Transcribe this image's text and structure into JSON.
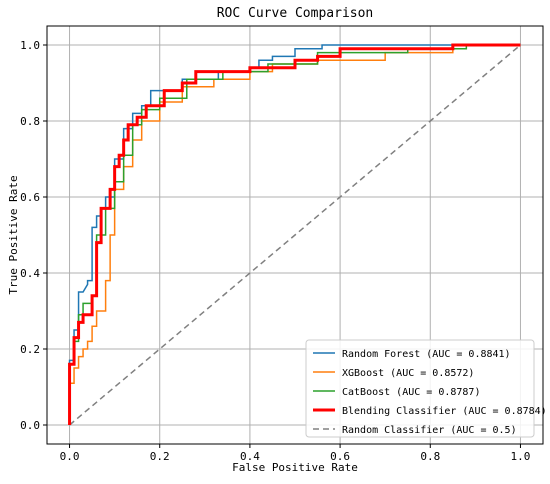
{
  "chart_data": {
    "type": "line",
    "title": "ROC Curve Comparison",
    "xlabel": "False Positive Rate",
    "ylabel": "True Positive Rate",
    "xlim": [
      -0.05,
      1.05
    ],
    "ylim": [
      -0.05,
      1.05
    ],
    "xticks": [
      "0.0",
      "0.2",
      "0.4",
      "0.6",
      "0.8",
      "1.0"
    ],
    "yticks": [
      "0.0",
      "0.2",
      "0.4",
      "0.6",
      "0.8",
      "1.0"
    ],
    "grid": true,
    "legend_position": "lower-right",
    "series": [
      {
        "name": "Random Forest (AUC = 0.8841)",
        "color": "#1f77b4",
        "width": 1.5,
        "dash": "",
        "x": [
          0,
          0,
          0.01,
          0.01,
          0.02,
          0.02,
          0.03,
          0.04,
          0.04,
          0.05,
          0.05,
          0.06,
          0.06,
          0.07,
          0.07,
          0.08,
          0.08,
          0.1,
          0.1,
          0.12,
          0.12,
          0.14,
          0.14,
          0.16,
          0.16,
          0.18,
          0.18,
          0.25,
          0.25,
          0.33,
          0.33,
          0.4,
          0.4,
          0.42,
          0.42,
          0.45,
          0.45,
          0.5,
          0.5,
          0.56,
          0.56,
          0.8,
          0.88,
          0.88,
          1
        ],
        "y": [
          0,
          0.17,
          0.17,
          0.25,
          0.25,
          0.35,
          0.35,
          0.37,
          0.38,
          0.38,
          0.52,
          0.52,
          0.55,
          0.55,
          0.57,
          0.57,
          0.6,
          0.6,
          0.7,
          0.7,
          0.78,
          0.78,
          0.82,
          0.82,
          0.84,
          0.84,
          0.88,
          0.88,
          0.91,
          0.91,
          0.93,
          0.93,
          0.94,
          0.94,
          0.96,
          0.96,
          0.97,
          0.97,
          0.99,
          0.99,
          1,
          1,
          1,
          1,
          1
        ]
      },
      {
        "name": "XGBoost (AUC = 0.8572)",
        "color": "#ff7f0e",
        "width": 1.5,
        "dash": "",
        "x": [
          0,
          0,
          0.01,
          0.01,
          0.02,
          0.02,
          0.03,
          0.03,
          0.04,
          0.04,
          0.05,
          0.05,
          0.06,
          0.06,
          0.08,
          0.08,
          0.09,
          0.09,
          0.1,
          0.1,
          0.12,
          0.12,
          0.14,
          0.14,
          0.16,
          0.16,
          0.2,
          0.2,
          0.25,
          0.25,
          0.32,
          0.32,
          0.4,
          0.4,
          0.45,
          0.45,
          0.55,
          0.55,
          0.7,
          0.7,
          0.85,
          0.85,
          1
        ],
        "y": [
          0,
          0.11,
          0.11,
          0.15,
          0.15,
          0.18,
          0.18,
          0.2,
          0.2,
          0.22,
          0.22,
          0.26,
          0.26,
          0.3,
          0.3,
          0.38,
          0.38,
          0.5,
          0.5,
          0.62,
          0.62,
          0.68,
          0.68,
          0.75,
          0.75,
          0.8,
          0.8,
          0.85,
          0.85,
          0.89,
          0.89,
          0.91,
          0.91,
          0.93,
          0.93,
          0.95,
          0.95,
          0.96,
          0.96,
          0.98,
          0.98,
          1,
          1
        ]
      },
      {
        "name": "CatBoost (AUC = 0.8787)",
        "color": "#2ca02c",
        "width": 1.5,
        "dash": "",
        "x": [
          0,
          0,
          0.01,
          0.01,
          0.02,
          0.02,
          0.03,
          0.03,
          0.05,
          0.05,
          0.06,
          0.06,
          0.08,
          0.08,
          0.1,
          0.1,
          0.12,
          0.12,
          0.14,
          0.14,
          0.16,
          0.16,
          0.2,
          0.2,
          0.26,
          0.26,
          0.34,
          0.34,
          0.44,
          0.44,
          0.55,
          0.55,
          0.75,
          0.75,
          0.88,
          0.88,
          1
        ],
        "y": [
          0,
          0.16,
          0.16,
          0.22,
          0.22,
          0.29,
          0.29,
          0.32,
          0.32,
          0.34,
          0.34,
          0.5,
          0.5,
          0.57,
          0.57,
          0.64,
          0.64,
          0.71,
          0.71,
          0.79,
          0.79,
          0.83,
          0.83,
          0.86,
          0.86,
          0.91,
          0.91,
          0.93,
          0.93,
          0.95,
          0.95,
          0.98,
          0.98,
          0.99,
          0.99,
          1,
          1
        ]
      },
      {
        "name": "Blending Classifier (AUC = 0.8784)",
        "color": "#ff0000",
        "width": 3,
        "dash": "",
        "x": [
          0,
          0,
          0.01,
          0.01,
          0.02,
          0.02,
          0.03,
          0.03,
          0.05,
          0.05,
          0.06,
          0.06,
          0.07,
          0.07,
          0.09,
          0.09,
          0.1,
          0.1,
          0.11,
          0.11,
          0.12,
          0.12,
          0.13,
          0.13,
          0.15,
          0.15,
          0.17,
          0.17,
          0.21,
          0.21,
          0.25,
          0.25,
          0.28,
          0.28,
          0.4,
          0.4,
          0.5,
          0.5,
          0.55,
          0.55,
          0.6,
          0.6,
          0.85,
          0.85,
          1
        ],
        "y": [
          0,
          0.16,
          0.16,
          0.23,
          0.23,
          0.27,
          0.27,
          0.29,
          0.29,
          0.34,
          0.34,
          0.48,
          0.48,
          0.57,
          0.57,
          0.62,
          0.62,
          0.68,
          0.68,
          0.71,
          0.71,
          0.75,
          0.75,
          0.79,
          0.79,
          0.81,
          0.81,
          0.84,
          0.84,
          0.88,
          0.88,
          0.9,
          0.9,
          0.93,
          0.93,
          0.94,
          0.94,
          0.96,
          0.96,
          0.97,
          0.97,
          0.99,
          0.99,
          1,
          1
        ]
      },
      {
        "name": "Random Classifier (AUC = 0.5)",
        "color": "#808080",
        "width": 1.5,
        "dash": "6,4",
        "x": [
          0,
          1
        ],
        "y": [
          0,
          1
        ]
      }
    ]
  }
}
